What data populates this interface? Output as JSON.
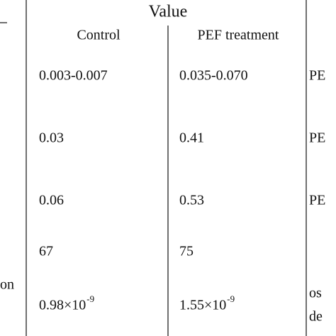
{
  "header": {
    "title": "Value",
    "columns": [
      "Control",
      "PEF treatment"
    ]
  },
  "left_fragment": "on",
  "table": {
    "rows": [
      [
        "0.003-0.007",
        "0.035-0.070",
        "PE"
      ],
      [
        "0.03",
        "0.41",
        "PE"
      ],
      [
        "0.06",
        "0.53",
        "PE"
      ],
      [
        "67",
        "75"
      ],
      [
        {
          "base": "0.98×10",
          "exp": "-9"
        },
        {
          "base": "1.55×10",
          "exp": "-9"
        },
        [
          "os",
          "de"
        ]
      ]
    ]
  }
}
